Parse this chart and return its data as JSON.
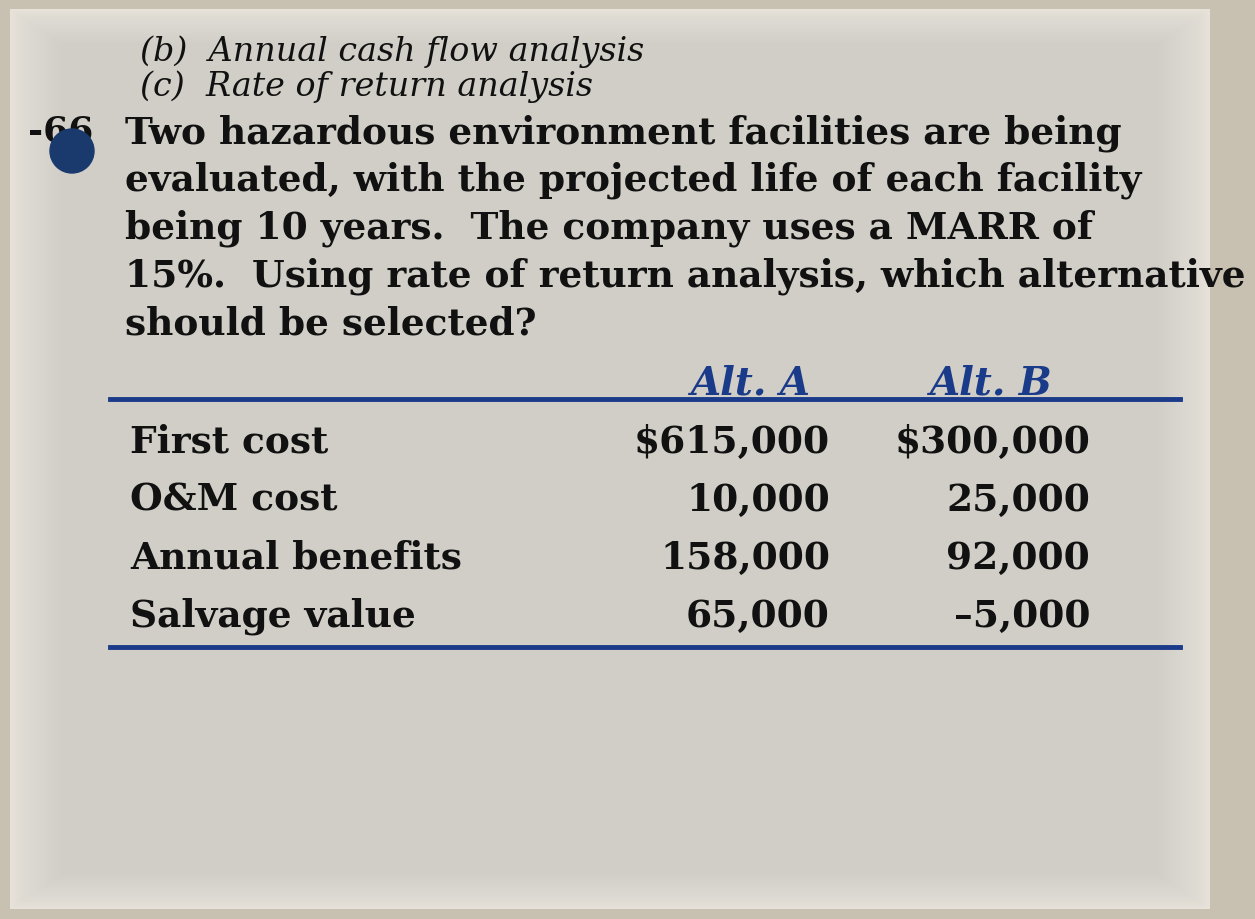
{
  "bg_color": "#c8c0b0",
  "page_color": "#e8e4dc",
  "text_color": "#111111",
  "header_color": "#111111",
  "col_header_color": "#1a3a8a",
  "table_line_color": "#1a3a8a",
  "problem_number_color": "#111111",
  "circle_color": "#1a3a6e",
  "header_line1": "(b)  Annual cash flow analysis",
  "header_line2": "(c)  Rate of return analysis",
  "problem_number": "-66",
  "problem_text_lines": [
    "Two hazardous environment facilities are being",
    "evaluated, with the projected life of each facility",
    "being 10 years.  The company uses a MARR of",
    "15%.  Using rate of return analysis, which alternative",
    "should be selected?"
  ],
  "col_headers": [
    "Alt. A",
    "Alt. B"
  ],
  "row_labels": [
    "First cost",
    "O&M cost",
    "Annual benefits",
    "Salvage value"
  ],
  "alt_a_values": [
    "$615,000",
    "10,000",
    "158,000",
    "65,000"
  ],
  "alt_b_values": [
    "$300,000",
    "25,000",
    "92,000",
    "–5,000"
  ]
}
